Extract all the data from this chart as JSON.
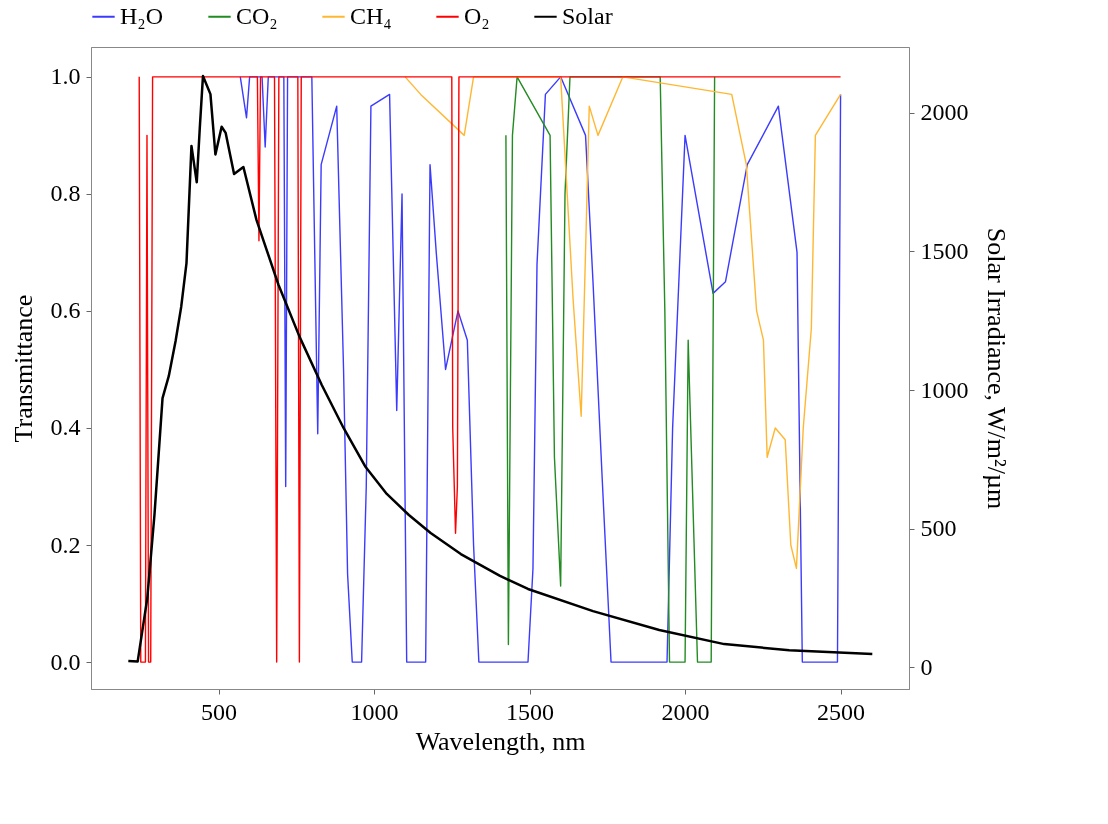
{
  "chart_data": {
    "type": "line",
    "xlabel": "Wavelength, nm",
    "ylabel": "Transmittance",
    "y2label": "Solar Irradiance, W/m²/µm",
    "xlim": [
      90,
      2720
    ],
    "xticks": [
      500,
      1000,
      1500,
      2000,
      2500
    ],
    "ylim": [
      -0.046,
      1.051
    ],
    "yticks": [
      {
        "value": 0,
        "label": "0.0"
      },
      0.2,
      0.4,
      0.6,
      0.8,
      {
        "value": 1,
        "label": "1.0"
      }
    ],
    "y2lim": [
      -79,
      2238
    ],
    "y2ticks": [
      0,
      500,
      1000,
      1500,
      2000
    ],
    "legend": "top",
    "grid": false,
    "marker": "none",
    "line_style": "solid",
    "series": [
      {
        "name": "H₂O",
        "color": "#3b3bff",
        "x": [
          570,
          590,
          600,
          640,
          650,
          660,
          710,
          716,
          722,
          800,
          819,
          830,
          880,
          902,
          915,
          930,
          960,
          975,
          990,
          1050,
          1073,
          1090,
          1105,
          1166,
          1180,
          1200,
          1230,
          1270,
          1300,
          1320,
          1337,
          1495,
          1511,
          1524,
          1551,
          1600,
          1680,
          1704,
          1733,
          1762,
          1942,
          1960,
          2000,
          2090,
          2130,
          2200,
          2300,
          2360,
          2377,
          2490,
          2500
        ],
        "values": [
          1,
          0.93,
          1,
          1,
          0.88,
          1,
          1,
          0.3,
          1,
          1,
          0.39,
          0.85,
          0.95,
          0.5,
          0.15,
          0,
          0,
          0.3,
          0.95,
          0.97,
          0.43,
          0.8,
          0,
          0,
          0.85,
          0.7,
          0.5,
          0.6,
          0.55,
          0.2,
          0,
          0,
          0.16,
          0.68,
          0.97,
          1,
          0.9,
          0.65,
          0.32,
          0,
          0,
          0.4,
          0.9,
          0.63,
          0.65,
          0.85,
          0.95,
          0.7,
          0,
          0,
          0.97
        ]
      },
      {
        "name": "CO₂",
        "color": "#228b22",
        "x": [
          1424,
          1432,
          1445,
          1460,
          1566,
          1580,
          1600,
          1614,
          1630,
          1920,
          1935,
          1950,
          2000,
          2010,
          2040,
          2084,
          2095
        ],
        "values": [
          0.9,
          0.03,
          0.9,
          1,
          0.9,
          0.35,
          0.13,
          0.8,
          1,
          1,
          0.6,
          0,
          0,
          0.55,
          0,
          0,
          1
        ]
      },
      {
        "name": "CH₄",
        "color": "#ffb732",
        "x": [
          1100,
          1150,
          1290,
          1320,
          1600,
          1621,
          1640,
          1666,
          1680,
          1692,
          1720,
          1800,
          2150,
          2197,
          2230,
          2252,
          2264,
          2290,
          2322,
          2340,
          2358,
          2380,
          2406,
          2419,
          2500
        ],
        "values": [
          1,
          0.97,
          0.9,
          1,
          1,
          0.8,
          0.62,
          0.42,
          0.7,
          0.95,
          0.9,
          1,
          0.97,
          0.85,
          0.6,
          0.55,
          0.35,
          0.4,
          0.38,
          0.2,
          0.16,
          0.4,
          0.57,
          0.9,
          0.97
        ]
      },
      {
        "name": "O₂",
        "color": "#ff0000",
        "x": [
          245,
          250,
          265,
          270,
          275,
          282,
          288,
          625,
          630,
          635,
          680,
          687,
          694,
          755,
          760,
          766,
          1250,
          1253,
          1262,
          1268,
          1273,
          2500
        ],
        "values": [
          1,
          0,
          0,
          0.9,
          0,
          0,
          1,
          1,
          0.72,
          1,
          1,
          0,
          1,
          1,
          0,
          1,
          1,
          0.4,
          0.22,
          0.3,
          1,
          1
        ]
      },
      {
        "name": "Solar",
        "color": "#000000",
        "axis": "y2",
        "x": [
          210,
          240,
          271,
          294,
          320,
          340,
          362,
          380,
          397,
          413,
          430,
          440,
          450,
          474,
          490,
          510,
          523,
          550,
          580,
          622,
          693,
          761,
          832,
          902,
          973,
          1041,
          1112,
          1182,
          1279,
          1405,
          1495,
          1704,
          1917,
          2126,
          2335,
          2602
        ],
        "values": [
          22,
          20,
          249,
          549,
          971,
          1050,
          1177,
          1300,
          1458,
          1881,
          1750,
          1950,
          2133,
          2068,
          1850,
          1950,
          1928,
          1780,
          1805,
          1614,
          1379,
          1191,
          1018,
          863,
          722,
          625,
          549,
          484,
          408,
          329,
          282,
          202,
          134,
          83,
          61,
          47
        ]
      }
    ]
  }
}
